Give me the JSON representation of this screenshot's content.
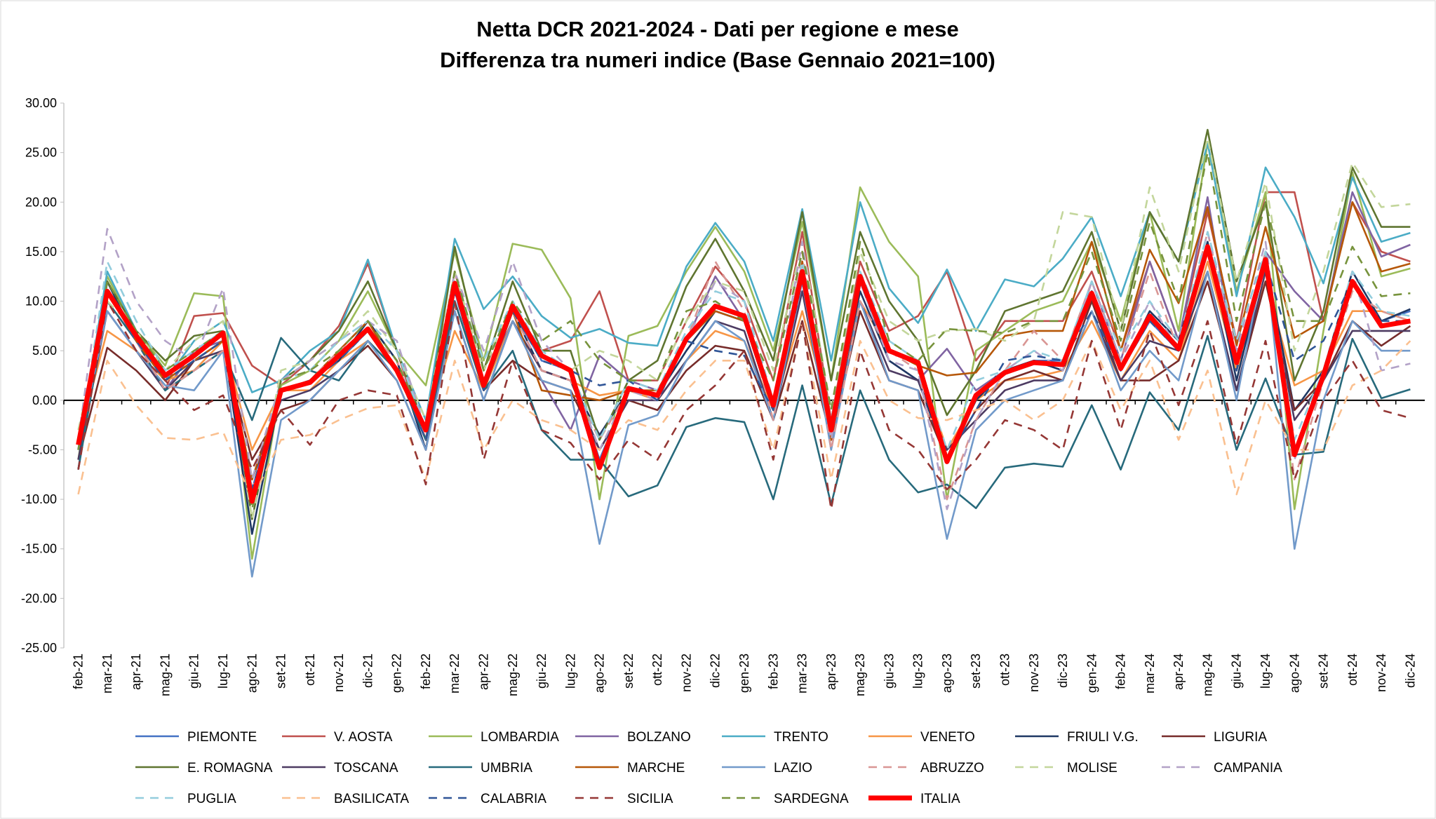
{
  "chart_data": {
    "type": "line",
    "title": "Netta DCR 2021-2024 - Dati per regione e mese",
    "subtitle": "Differenza tra numeri indice (Base Gennaio 2021=100)",
    "categories": [
      "feb-21",
      "mar-21",
      "apr-21",
      "mag-21",
      "giu-21",
      "lug-21",
      "ago-21",
      "set-21",
      "ott-21",
      "nov-21",
      "dic-21",
      "gen-22",
      "feb-22",
      "mar-22",
      "apr-22",
      "mag-22",
      "giu-22",
      "lug-22",
      "ago-22",
      "set-22",
      "ott-22",
      "nov-22",
      "dic-22",
      "gen-23",
      "feb-23",
      "mar-23",
      "apr-23",
      "mag-23",
      "giu-23",
      "lug-23",
      "ago-23",
      "set-23",
      "ott-23",
      "nov-23",
      "dic-23",
      "gen-24",
      "feb-24",
      "mar-24",
      "apr-24",
      "mag-24",
      "giu-24",
      "lug-24",
      "ago-24",
      "set-24",
      "ott-24",
      "nov-24",
      "dic-24"
    ],
    "ylim": [
      -25,
      30
    ],
    "yticks": [
      {
        "value": 30,
        "label": "30.00"
      },
      {
        "value": 25,
        "label": "25.00"
      },
      {
        "value": 20,
        "label": "20.00"
      },
      {
        "value": 15,
        "label": "15.00"
      },
      {
        "value": 10,
        "label": "10.00"
      },
      {
        "value": 5,
        "label": "5.00"
      },
      {
        "value": 0,
        "label": "0.00"
      },
      {
        "value": -5,
        "label": "-5.00"
      },
      {
        "value": -10,
        "label": "-10.00"
      },
      {
        "value": -15,
        "label": "-15.00"
      },
      {
        "value": -20,
        "label": "-20.00"
      },
      {
        "value": -25,
        "label": "-25.00"
      }
    ],
    "grid": false,
    "legend": "bottom",
    "series": [
      {
        "name": "PIEMONTE",
        "color": "#4472c4",
        "line_style": "solid",
        "values": [
          -5,
          11,
          6,
          2,
          4,
          6,
          -9,
          1,
          2,
          4,
          7,
          3,
          -4,
          11,
          1,
          9,
          4,
          3,
          -6,
          1,
          0,
          6,
          9,
          8,
          -1,
          12,
          -3,
          12,
          5,
          4,
          -6,
          0,
          3,
          4,
          4,
          10,
          3,
          8,
          5,
          15,
          3,
          14,
          -5,
          2,
          12,
          8,
          9
        ]
      },
      {
        "name": "V. AOSTA",
        "color": "#c0504d",
        "line_style": "solid",
        "values": [
          -5,
          11,
          6,
          1,
          8.5,
          8.8,
          3.5,
          1.5,
          4,
          7.5,
          13.8,
          5,
          -4,
          13,
          2,
          9.5,
          5,
          6,
          11,
          2,
          2,
          8,
          13.5,
          10,
          2,
          17,
          -2,
          14,
          7,
          8.5,
          13,
          4,
          8,
          8,
          8,
          13,
          5,
          14,
          6,
          19,
          6,
          21,
          21,
          8,
          20,
          15,
          14
        ]
      },
      {
        "name": "LOMBARDIA",
        "color": "#9bbb59",
        "line_style": "solid",
        "values": [
          -5,
          12.5,
          7,
          3.5,
          10.8,
          10.5,
          -16,
          1.5,
          3,
          6,
          11,
          5,
          1.5,
          15,
          4,
          15.8,
          15.2,
          10.3,
          -10,
          6.5,
          7.5,
          13,
          17.5,
          13,
          5,
          18,
          2,
          21.5,
          16,
          12.5,
          -10,
          5,
          7,
          9,
          10,
          16,
          8,
          19,
          7,
          26,
          11,
          21,
          -11,
          7,
          23,
          12.5,
          13.3
        ]
      },
      {
        "name": "BOLZANO",
        "color": "#8064a2",
        "line_style": "solid",
        "values": [
          -5,
          10,
          6,
          1,
          5,
          6,
          -10,
          1,
          2,
          5,
          8,
          4,
          -4,
          11,
          2,
          8,
          2,
          -3,
          4.5,
          2,
          1,
          6,
          12.5,
          8,
          -1,
          14,
          -4,
          12,
          4,
          2,
          5.2,
          1,
          3,
          4,
          3,
          12,
          4,
          14,
          6,
          20.5,
          3,
          15,
          11,
          8,
          21,
          14.5,
          15.7
        ]
      },
      {
        "name": "TRENTO",
        "color": "#4bacc6",
        "line_style": "solid",
        "values": [
          -5,
          13,
          7,
          2,
          6,
          8,
          0.8,
          2,
          5,
          7,
          14.2,
          5,
          -2,
          16.3,
          9.2,
          12.5,
          8.5,
          6.3,
          7.2,
          5.8,
          5.5,
          13.5,
          17.9,
          14,
          6,
          19.3,
          4,
          20,
          11.3,
          7.8,
          13.2,
          7,
          12.2,
          11.5,
          14.3,
          18.5,
          10.5,
          19,
          14,
          26,
          10.5,
          23.5,
          18.5,
          11.8,
          22.5,
          16,
          16.9
        ]
      },
      {
        "name": "VENETO",
        "color": "#f79646",
        "line_style": "solid",
        "values": [
          -4,
          7,
          5,
          2,
          3,
          6,
          -5,
          1,
          1,
          4,
          6,
          3,
          -3,
          7,
          1,
          8,
          3,
          2,
          0.5,
          1,
          0,
          4,
          7,
          6,
          -1,
          9,
          -2,
          10,
          5,
          4,
          -5,
          0,
          2,
          2.3,
          3,
          8,
          2,
          7,
          4,
          14,
          3,
          12,
          1.5,
          3,
          9,
          9,
          8
        ]
      },
      {
        "name": "FRIULI V.G.",
        "color": "#1f3864",
        "line_style": "solid",
        "values": [
          -7,
          12,
          6,
          2,
          4,
          6,
          -13.5,
          1,
          2,
          4,
          8,
          4,
          -5,
          12,
          1,
          9,
          3,
          2,
          -3.5,
          1,
          0.5,
          5,
          9,
          8,
          -1,
          13,
          -3,
          11,
          4,
          2,
          -6,
          0,
          3,
          4,
          3,
          11,
          3,
          9,
          6,
          16,
          2,
          14,
          -1,
          3,
          13,
          8,
          9.2
        ]
      },
      {
        "name": "LIGURIA",
        "color": "#772c2a",
        "line_style": "solid",
        "values": [
          -6,
          5.3,
          3,
          0,
          4,
          5,
          -6,
          -1,
          0,
          3,
          5.5,
          2,
          -5,
          10,
          1,
          4,
          2,
          1,
          -5,
          0,
          -1,
          3,
          5.5,
          5,
          -2,
          8,
          -4,
          9,
          2,
          1,
          -6,
          -1,
          2,
          3,
          2,
          10,
          2,
          2,
          4,
          12,
          1,
          12,
          -1,
          2,
          8,
          5.5,
          7.5
        ]
      },
      {
        "name": "E. ROMAGNA",
        "color": "#5f7530",
        "line_style": "solid",
        "values": [
          -6,
          12,
          7,
          4,
          6.5,
          7,
          -12,
          2,
          4,
          7,
          12,
          5,
          -3,
          15.5,
          3,
          12,
          5,
          5,
          -4,
          2,
          4,
          11.5,
          16.3,
          11,
          4,
          19,
          2,
          17,
          10,
          6,
          -1.5,
          3,
          9,
          10,
          11,
          17,
          7,
          19,
          14,
          27.3,
          12,
          20,
          2,
          9,
          23.5,
          17.5,
          17.5
        ]
      },
      {
        "name": "TOSCANA",
        "color": "#4d3b62",
        "line_style": "solid",
        "values": [
          -6,
          9,
          5,
          1,
          4,
          5,
          -8,
          0,
          1,
          3,
          6,
          3,
          -4,
          9,
          0,
          8,
          3,
          2,
          -5,
          0,
          0,
          4,
          8,
          7,
          -2,
          11,
          -4,
          10,
          3,
          2,
          -5,
          -2,
          1,
          2,
          2,
          9,
          2,
          6,
          5,
          13,
          1,
          13,
          -2,
          2,
          7,
          7,
          7
        ]
      },
      {
        "name": "UMBRIA",
        "color": "#276a7c",
        "line_style": "solid",
        "values": [
          -7,
          10,
          6,
          1,
          3,
          5,
          -2,
          6.3,
          3,
          2,
          6,
          3,
          -4,
          10,
          1,
          5,
          -3,
          -6,
          -6,
          -9.7,
          -8.6,
          -2.7,
          -1.8,
          -2.2,
          -10,
          1.5,
          -10.5,
          1,
          -6,
          -9.3,
          -8.5,
          -10.9,
          -6.8,
          -6.4,
          -6.7,
          -0.5,
          -7,
          0.8,
          -3,
          6.5,
          -5,
          2.2,
          -5.5,
          -5.2,
          6.2,
          0.2,
          1.1
        ]
      },
      {
        "name": "MARCHE",
        "color": "#b65708",
        "line_style": "solid",
        "values": [
          -5,
          11,
          6,
          2,
          4,
          6,
          -8,
          1,
          2,
          5,
          8,
          3,
          -3,
          12,
          1,
          9,
          1,
          0.5,
          0,
          1,
          1,
          6,
          9,
          8,
          0,
          14,
          -4,
          12,
          5,
          3.5,
          2.5,
          2.8,
          6.5,
          7,
          7,
          16,
          5,
          15.2,
          9.8,
          19.5,
          5.5,
          17.5,
          6.3,
          8,
          20,
          13,
          13.8
        ]
      },
      {
        "name": "LAZIO",
        "color": "#729aca",
        "line_style": "solid",
        "values": [
          -5,
          9,
          5,
          1.5,
          1,
          5,
          -17.8,
          -2,
          0,
          3,
          6,
          2,
          -5,
          9,
          0,
          8,
          2,
          1,
          -14.5,
          -2.5,
          -1.5,
          4,
          8,
          6,
          -2,
          12,
          -5,
          10,
          2,
          1,
          -14,
          -3,
          0,
          1,
          2,
          9,
          1,
          5,
          2,
          13,
          0,
          15,
          -15,
          0,
          8,
          5,
          5
        ]
      },
      {
        "name": "ABRUZZO",
        "color": "#d99694",
        "line_style": "dashed",
        "values": [
          -5,
          11,
          6,
          1,
          3,
          5,
          -9,
          1,
          2,
          5,
          7,
          4,
          -4,
          12,
          3,
          9,
          3,
          2,
          -4,
          1,
          0,
          6,
          14,
          9,
          -2,
          15,
          -5,
          10,
          5,
          3,
          -10,
          -2,
          3,
          7,
          4,
          12,
          4,
          13,
          5,
          17,
          4,
          15,
          -8,
          2,
          11,
          9,
          8
        ]
      },
      {
        "name": "MOLISE",
        "color": "#c3d69b",
        "line_style": "dashed",
        "values": [
          -3,
          10,
          7,
          3,
          6,
          8,
          -12,
          3,
          4,
          6,
          9,
          5,
          -2,
          13,
          3,
          10,
          4,
          3,
          5,
          4,
          2,
          8,
          12,
          11,
          3,
          16,
          -1,
          15,
          8,
          6,
          7,
          7.2,
          6,
          8,
          19,
          18.5,
          7,
          21.5,
          13,
          26.5,
          12,
          22,
          5,
          13,
          24,
          19.5,
          19.8
        ]
      },
      {
        "name": "CAMPANIA",
        "color": "#b3a2c7",
        "line_style": "dashed",
        "values": [
          -4,
          17.3,
          10,
          6,
          4,
          11.3,
          -8,
          2,
          4,
          6,
          8,
          6,
          -3,
          13,
          5,
          14,
          6,
          3,
          -5,
          1,
          0,
          6,
          12,
          10,
          -1,
          16,
          -4,
          12,
          4,
          3,
          -11,
          -2,
          3,
          5,
          3,
          12,
          4,
          10,
          5,
          17,
          5,
          16,
          -6,
          3,
          13,
          3,
          3.7
        ]
      },
      {
        "name": "PUGLIA",
        "color": "#93cddd",
        "line_style": "dashed",
        "values": [
          -5,
          14,
          8,
          3,
          5,
          7,
          -10,
          2,
          3,
          6,
          8,
          5,
          -3,
          12,
          4,
          10,
          5,
          3,
          -4,
          2,
          1,
          7,
          11,
          10,
          0,
          14,
          -2,
          13,
          6,
          4,
          -5,
          2,
          3,
          5,
          4,
          12,
          5,
          10,
          6,
          17,
          6,
          15,
          -4,
          3,
          13,
          9,
          8.5
        ]
      },
      {
        "name": "BASILICATA",
        "color": "#fac090",
        "line_style": "dashed",
        "values": [
          -9.5,
          4,
          -0.5,
          -3.8,
          -4,
          -3.2,
          -10,
          -4,
          -3.5,
          -2,
          -0.8,
          -0.5,
          -8,
          4,
          -5,
          0,
          -2,
          -3,
          -5,
          -2,
          -3,
          1,
          4,
          4,
          -5,
          8,
          -8,
          6,
          0,
          -1.8,
          -2,
          -1,
          0,
          -2,
          0,
          6,
          -1,
          4,
          -4,
          3,
          -9.5,
          0,
          -5,
          -5,
          1.5,
          3,
          6
        ]
      },
      {
        "name": "CALABRIA",
        "color": "#2f5597",
        "line_style": "dashed",
        "values": [
          -5,
          11,
          6,
          2,
          4,
          6,
          -9,
          1,
          2,
          4,
          7,
          3,
          -4,
          11,
          1,
          9,
          4,
          3,
          1.5,
          2,
          0,
          6,
          5,
          4.5,
          -1,
          12,
          -3,
          12,
          5,
          4,
          -6,
          -1,
          4,
          4.5,
          4,
          9,
          3,
          8,
          5,
          15,
          3,
          14,
          4,
          6,
          12,
          8,
          8
        ]
      },
      {
        "name": "SICILIA",
        "color": "#953735",
        "line_style": "dashed",
        "values": [
          -7,
          10,
          5,
          2,
          -1,
          0.5,
          -7,
          -1,
          -4.5,
          0,
          1,
          0.5,
          -8.5,
          10,
          -6,
          4,
          -3,
          -4.3,
          -8,
          -4,
          -6,
          -1,
          1.5,
          5,
          -6,
          8,
          -11,
          5,
          -3,
          -5,
          -9,
          -6,
          -2,
          -3,
          -5,
          6,
          -3,
          7,
          -0.5,
          8,
          -4.5,
          6,
          -8,
          0,
          4,
          -1,
          -1.8
        ]
      },
      {
        "name": "SARDEGNA",
        "color": "#77933c",
        "line_style": "dashed",
        "values": [
          -5,
          12,
          7,
          3,
          5,
          7,
          -11,
          2,
          3,
          5,
          8,
          4,
          -3,
          13,
          3,
          10,
          6,
          8,
          4,
          2,
          2,
          9,
          10,
          8,
          2,
          15,
          -1,
          16,
          6,
          4,
          7.2,
          7,
          6.8,
          8,
          8,
          15,
          6,
          18,
          10,
          25,
          8,
          20,
          8,
          8,
          15.5,
          10.5,
          10.8
        ]
      },
      {
        "name": "ITALIA",
        "color": "#ff0000",
        "line_style": "bold",
        "values": [
          -4.5,
          11,
          6.5,
          2.5,
          4.5,
          6.8,
          -10.2,
          1,
          1.8,
          4.5,
          7.2,
          3,
          -3,
          11.8,
          1.5,
          9.5,
          4.5,
          3,
          -6.8,
          1.2,
          0.5,
          6.2,
          9.5,
          8.5,
          -0.5,
          13,
          -3,
          12.5,
          5,
          3.8,
          -6.2,
          0.5,
          2.8,
          3.8,
          3.6,
          10.8,
          3.2,
          8.5,
          5.2,
          15.5,
          3.8,
          14.2,
          -5.5,
          2.5,
          12,
          7.5,
          8
        ]
      }
    ]
  }
}
